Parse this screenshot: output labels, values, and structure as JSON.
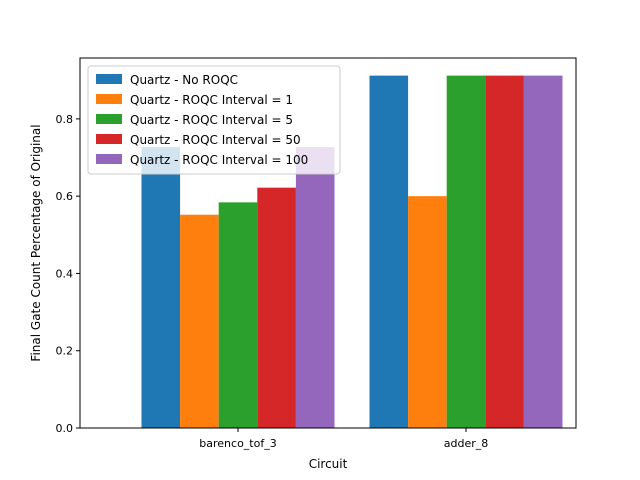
{
  "chart_data": {
    "type": "bar",
    "categories": [
      "barenco_tof_3",
      "adder_8"
    ],
    "series": [
      {
        "name": "Quartz - No ROQC",
        "color": "#1f77b4",
        "values": [
          0.727,
          0.912
        ]
      },
      {
        "name": "Quartz - ROQC Interval = 1",
        "color": "#ff7f0e",
        "values": [
          0.552,
          0.6
        ]
      },
      {
        "name": "Quartz - ROQC Interval = 5",
        "color": "#2ca02c",
        "values": [
          0.584,
          0.912
        ]
      },
      {
        "name": "Quartz - ROQC Interval = 50",
        "color": "#d62728",
        "values": [
          0.622,
          0.912
        ]
      },
      {
        "name": "Quartz - ROQC Interval = 100",
        "color": "#9467bd",
        "values": [
          0.727,
          0.912
        ]
      }
    ],
    "xlabel": "Circuit",
    "ylabel": "Final Gate Count Percentage of Original",
    "ylim": [
      0,
      0.9576
    ],
    "yticks": [
      0.0,
      0.2,
      0.4,
      0.6,
      0.8
    ],
    "ytick_labels": [
      "0.0",
      "0.2",
      "0.4",
      "0.6",
      "0.8"
    ],
    "legend": "top-left",
    "grid": false
  }
}
